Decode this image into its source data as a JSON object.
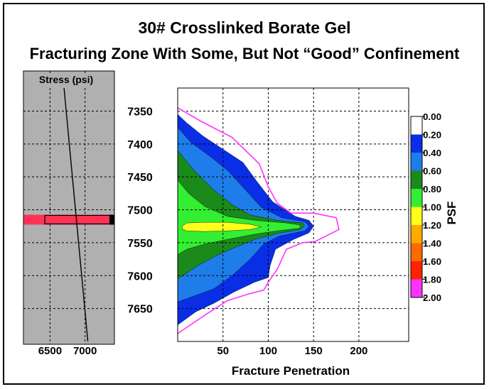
{
  "title": "30# Crosslinked Borate Gel",
  "subtitle": "Fracturing Zone With Some, But Not “Good” Confinement",
  "chart_data": [
    {
      "type": "line",
      "title": "Stress (psi)",
      "xlabel": "",
      "x_ticks": [
        6500,
        7000
      ],
      "xlim": [
        6120,
        7420
      ],
      "ylim": [
        7315,
        7700
      ],
      "series": [
        {
          "color": "#000000",
          "points": [
            [
              6700,
              7315
            ],
            [
              7040,
              7700
            ]
          ]
        }
      ],
      "zone": {
        "depth": 7515,
        "color": "#ff3355"
      },
      "grid": "dashed",
      "background": "#b0b0b0"
    },
    {
      "type": "contour",
      "xlabel": "Fracture Penetration",
      "ylabel": "",
      "x_ticks": [
        50,
        100,
        150,
        200
      ],
      "y_ticks": [
        7350,
        7400,
        7450,
        7500,
        7550,
        7600,
        7650
      ],
      "xlim": [
        0,
        255
      ],
      "ylim": [
        7315,
        7700
      ],
      "grid": "dashed",
      "colorbar": {
        "label": "PSF",
        "tick_labels": [
          "0.00",
          "0.20",
          "0.40",
          "0.60",
          "0.80",
          "1.00",
          "1.20",
          "1.40",
          "1.60",
          "1.80",
          "2.00"
        ],
        "colors": [
          "#ffffff",
          "#0a2ee6",
          "#1e7de8",
          "#1a8a1a",
          "#33ee33",
          "#ffff1a",
          "#ffaa00",
          "#ff6a00",
          "#ff2200",
          "#ff33ff"
        ]
      },
      "envelope": {
        "color": "#ff33ff",
        "points": [
          [
            0,
            7345
          ],
          [
            25,
            7365
          ],
          [
            60,
            7390
          ],
          [
            90,
            7430
          ],
          [
            100,
            7465
          ],
          [
            110,
            7490
          ],
          [
            125,
            7505
          ],
          [
            150,
            7505
          ],
          [
            175,
            7512
          ],
          [
            178,
            7530
          ],
          [
            152,
            7548
          ],
          [
            138,
            7550
          ],
          [
            120,
            7560
          ],
          [
            110,
            7590
          ],
          [
            100,
            7610
          ],
          [
            95,
            7622
          ],
          [
            78,
            7628
          ],
          [
            55,
            7638
          ],
          [
            30,
            7660
          ],
          [
            0,
            7688
          ]
        ]
      },
      "levels": [
        {
          "value": 0.2,
          "color": "#0a2ee6",
          "points": [
            [
              0,
              7355
            ],
            [
              10,
              7368
            ],
            [
              28,
              7388
            ],
            [
              50,
              7408
            ],
            [
              72,
              7428
            ],
            [
              88,
              7458
            ],
            [
              105,
              7488
            ],
            [
              130,
              7510
            ],
            [
              145,
              7516
            ],
            [
              150,
              7525
            ],
            [
              145,
              7535
            ],
            [
              128,
              7545
            ],
            [
              108,
              7560
            ],
            [
              102,
              7585
            ],
            [
              100,
              7603
            ],
            [
              85,
              7610
            ],
            [
              62,
              7625
            ],
            [
              40,
              7642
            ],
            [
              20,
              7655
            ],
            [
              0,
              7675
            ]
          ]
        },
        {
          "value": 0.4,
          "color": "#1e7de8",
          "points": [
            [
              0,
              7375
            ],
            [
              15,
              7398
            ],
            [
              35,
              7418
            ],
            [
              55,
              7440
            ],
            [
              75,
              7470
            ],
            [
              92,
              7496
            ],
            [
              115,
              7512
            ],
            [
              140,
              7518
            ],
            [
              145,
              7525
            ],
            [
              140,
              7532
            ],
            [
              112,
              7540
            ],
            [
              95,
              7552
            ],
            [
              80,
              7575
            ],
            [
              60,
              7600
            ],
            [
              40,
              7620
            ],
            [
              20,
              7630
            ],
            [
              0,
              7640
            ]
          ]
        },
        {
          "value": 0.6,
          "color": "#1a8a1a",
          "points": [
            [
              0,
              7410
            ],
            [
              18,
              7440
            ],
            [
              40,
              7470
            ],
            [
              60,
              7492
            ],
            [
              80,
              7508
            ],
            [
              110,
              7516
            ],
            [
              138,
              7520
            ],
            [
              140,
              7525
            ],
            [
              135,
              7530
            ],
            [
              110,
              7536
            ],
            [
              85,
              7545
            ],
            [
              62,
              7558
            ],
            [
              42,
              7570
            ],
            [
              22,
              7585
            ],
            [
              0,
              7605
            ]
          ]
        },
        {
          "value": 0.8,
          "color": "#33ee33",
          "points": [
            [
              0,
              7455
            ],
            [
              12,
              7475
            ],
            [
              30,
              7495
            ],
            [
              55,
              7510
            ],
            [
              85,
              7516
            ],
            [
              120,
              7520
            ],
            [
              135,
              7523
            ],
            [
              135,
              7528
            ],
            [
              110,
              7532
            ],
            [
              85,
              7537
            ],
            [
              55,
              7545
            ],
            [
              30,
              7552
            ],
            [
              10,
              7560
            ],
            [
              0,
              7568
            ]
          ]
        },
        {
          "value": 1.0,
          "color": "#ffff1a",
          "points": [
            [
              5,
              7525
            ],
            [
              10,
              7520
            ],
            [
              30,
              7519
            ],
            [
              55,
              7519
            ],
            [
              80,
              7522
            ],
            [
              92,
              7526
            ],
            [
              80,
              7530
            ],
            [
              55,
              7532
            ],
            [
              30,
              7533
            ],
            [
              10,
              7532
            ],
            [
              5,
              7529
            ]
          ]
        }
      ]
    }
  ]
}
